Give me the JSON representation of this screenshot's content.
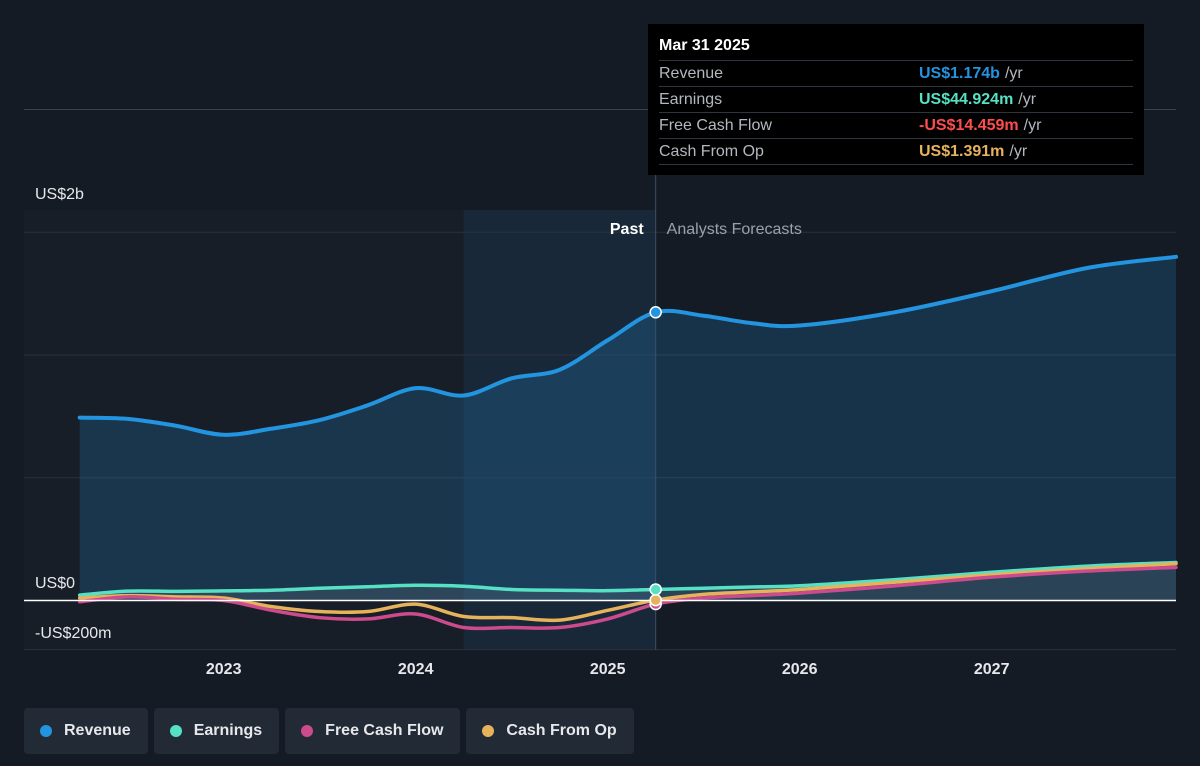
{
  "colors": {
    "revenue": "#2394df",
    "earnings": "#56e0c4",
    "free_cash_flow": "#cc4b8d",
    "cash_from_op": "#e6b35c",
    "negative": "#ff4d4d"
  },
  "tooltip": {
    "date": "Mar 31 2025",
    "rows": [
      {
        "label": "Revenue",
        "value": "US$1.174b",
        "unit": "/yr",
        "color": "#2394df"
      },
      {
        "label": "Earnings",
        "value": "US$44.924m",
        "unit": "/yr",
        "color": "#56e0c4"
      },
      {
        "label": "Free Cash Flow",
        "value": "-US$14.459m",
        "unit": "/yr",
        "color": "#ff4d4d"
      },
      {
        "label": "Cash From Op",
        "value": "US$1.391m",
        "unit": "/yr",
        "color": "#e6b35c"
      }
    ]
  },
  "legend": [
    {
      "label": "Revenue",
      "color": "#2394df"
    },
    {
      "label": "Earnings",
      "color": "#56e0c4"
    },
    {
      "label": "Free Cash Flow",
      "color": "#cc4b8d"
    },
    {
      "label": "Cash From Op",
      "color": "#e6b35c"
    }
  ],
  "chart_data": {
    "type": "line",
    "title": "",
    "past_label": "Past",
    "forecast_label": "Analysts Forecasts",
    "y_tick_labels": [
      "US$2b",
      "US$0",
      "-US$200m"
    ],
    "x_tick_labels": [
      "2023",
      "2024",
      "2025",
      "2026",
      "2027"
    ],
    "x_ticks": [
      2023.0,
      2024.0,
      2025.0,
      2026.0,
      2027.0
    ],
    "xlim": [
      2021.96,
      2027.96
    ],
    "ylim": [
      -400,
      2000
    ],
    "unit": "US$m",
    "past_end": 2025.25,
    "highlight_start": 2024.25,
    "series": [
      {
        "name": "Revenue",
        "x": [
          2022.25,
          2022.5,
          2022.75,
          2023.0,
          2023.25,
          2023.5,
          2023.75,
          2024.0,
          2024.25,
          2024.5,
          2024.75,
          2025.0,
          2025.25,
          2025.5,
          2025.75,
          2026.0,
          2026.5,
          2027.0,
          2027.5,
          2027.96
        ],
        "values": [
          745,
          740,
          712,
          675,
          700,
          735,
          795,
          865,
          835,
          905,
          940,
          1060,
          1174,
          1160,
          1130,
          1120,
          1175,
          1260,
          1355,
          1400
        ]
      },
      {
        "name": "Earnings",
        "x": [
          2022.25,
          2022.5,
          2022.75,
          2023.0,
          2023.25,
          2023.5,
          2023.75,
          2024.0,
          2024.25,
          2024.5,
          2024.75,
          2025.0,
          2025.25,
          2025.5,
          2025.75,
          2026.0,
          2026.5,
          2027.0,
          2027.5,
          2027.96
        ],
        "values": [
          22,
          38,
          37,
          39,
          42,
          50,
          56,
          62,
          58,
          45,
          42,
          40,
          44.9,
          50,
          55,
          60,
          85,
          115,
          140,
          155
        ]
      },
      {
        "name": "Free Cash Flow",
        "x": [
          2022.25,
          2022.5,
          2022.75,
          2023.0,
          2023.25,
          2023.5,
          2023.75,
          2024.0,
          2024.25,
          2024.5,
          2024.75,
          2025.0,
          2025.25,
          2025.5,
          2025.75,
          2026.0,
          2026.5,
          2027.0,
          2027.5,
          2027.96
        ],
        "values": [
          -5,
          15,
          5,
          0,
          -40,
          -70,
          -75,
          -55,
          -110,
          -110,
          -110,
          -75,
          -14.5,
          10,
          20,
          30,
          60,
          95,
          120,
          135
        ]
      },
      {
        "name": "Cash From Op",
        "x": [
          2022.25,
          2022.5,
          2022.75,
          2023.0,
          2023.25,
          2023.5,
          2023.75,
          2024.0,
          2024.25,
          2024.5,
          2024.75,
          2025.0,
          2025.25,
          2025.5,
          2025.75,
          2026.0,
          2026.5,
          2027.0,
          2027.5,
          2027.96
        ],
        "values": [
          10,
          20,
          15,
          10,
          -25,
          -45,
          -45,
          -15,
          -65,
          -70,
          -80,
          -40,
          1.4,
          25,
          35,
          45,
          75,
          105,
          130,
          150
        ]
      }
    ]
  }
}
